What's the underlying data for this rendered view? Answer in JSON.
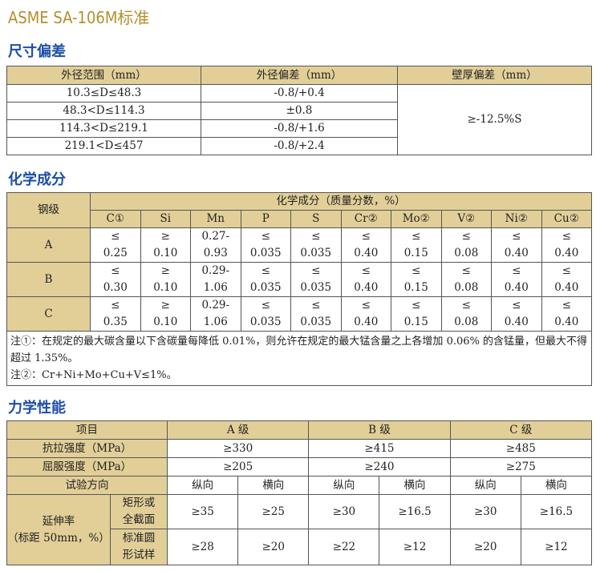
{
  "title": "ASME SA-106M标准",
  "dimension": {
    "heading": "尺寸偏差",
    "headers": [
      "外径范围（mm）",
      "外径偏差（mm）",
      "壁厚偏差（mm）"
    ],
    "rows": [
      [
        "10.3≤D≤48.3",
        "-0.8/+0.4"
      ],
      [
        "48.3<D≤114.3",
        "±0.8"
      ],
      [
        "114.3<D≤219.1",
        "-0.8/+1.6"
      ],
      [
        "219.1<D≤457",
        "-0.8/+2.4"
      ]
    ],
    "wall": "≥-12.5%S"
  },
  "chemical": {
    "heading": "化学成分",
    "grade_label": "钢级",
    "group_label": "化学成分（质量分数，%）",
    "elements": [
      "C①",
      "Si",
      "Mn",
      "P",
      "S",
      "Cr②",
      "Mo②",
      "V②",
      "Ni②",
      "Cu②"
    ],
    "rows": [
      {
        "grade": "A",
        "values": [
          "≤\n0.25",
          "≥\n0.10",
          "0.27-\n0.93",
          "≤\n0.035",
          "≤\n0.035",
          "≤\n0.40",
          "≤\n0.15",
          "≤\n0.08",
          "≤\n0.40",
          "≤\n0.40"
        ]
      },
      {
        "grade": "B",
        "values": [
          "≤\n0.30",
          "≥\n0.10",
          "0.29-\n1.06",
          "≤\n0.035",
          "≤\n0.035",
          "≤\n0.40",
          "≤\n0.15",
          "≤\n0.08",
          "≤\n0.40",
          "≤\n0.40"
        ]
      },
      {
        "grade": "C",
        "values": [
          "≤\n0.35",
          "≥\n0.10",
          "0.29-\n1.06",
          "≤\n0.035",
          "≤\n0.035",
          "≤\n0.40",
          "≤\n0.15",
          "≤\n0.08",
          "≤\n0.40",
          "≤\n0.40"
        ]
      }
    ],
    "note1": "注①：在规定的最大碳含量以下含碳量每降低 0.01%，则允许在规定的最大锰含量之上各增加 0.06% 的含锰量，但最大不得超过 1.35%。",
    "note2": "注②：Cr+Ni+Mo+Cu+V≤1%。"
  },
  "mechanical": {
    "heading": "力学性能",
    "item": "项目",
    "grades": [
      "A 级",
      "B 级",
      "C 级"
    ],
    "tensile_label": "抗拉强度（MPa）",
    "tensile": [
      "≥330",
      "≥415",
      "≥485"
    ],
    "yield_label": "屈服强度（MPa）",
    "yield": [
      "≥205",
      "≥240",
      "≥275"
    ],
    "direction_label": "试验方向",
    "directions": [
      "纵向",
      "横向",
      "纵向",
      "横向",
      "纵向",
      "横向"
    ],
    "elong_label": "延伸率\n（标距 50mm，%）",
    "rect_label": "矩形或\n全截面",
    "rect": [
      "≥35",
      "≥25",
      "≥30",
      "≥16.5",
      "≥30",
      "≥16.5"
    ],
    "round_label": "标准圆\n形试样",
    "round": [
      "≥28",
      "≥20",
      "≥22",
      "≥12",
      "≥20",
      "≥12"
    ]
  }
}
